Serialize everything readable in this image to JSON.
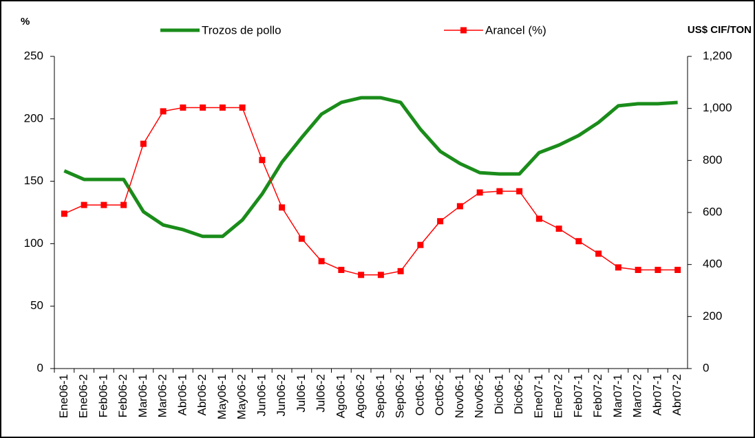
{
  "chart_data": {
    "type": "line",
    "y_label": "%",
    "y2_label": "US$ CIF/TON",
    "categories": [
      "Ene06-1",
      "Ene06-2",
      "Feb06-1",
      "Feb06-2",
      "Mar06-1",
      "Mar06-2",
      "Abr06-1",
      "Abr06-2",
      "May06-1",
      "May06-2",
      "Jun06-1",
      "Jun06-2",
      "Jul06-1",
      "Jul06-2",
      "Ago06-1",
      "Ago06-2",
      "Sep06-1",
      "Sep06-2",
      "Oct06-1",
      "Oct06-2",
      "Nov06-1",
      "Nov06-2",
      "Dic06-1",
      "Dic06-2",
      "Ene07-1",
      "Ene07-2",
      "Feb07-1",
      "Feb07-2",
      "Mar07-1",
      "Mar07-2",
      "Abr07-1",
      "Abr07-2"
    ],
    "series": [
      {
        "name": "Trozos de pollo",
        "color": "#1a8c1a",
        "axis": "y2",
        "marker": "none",
        "values": [
          760,
          727,
          727,
          727,
          603,
          552,
          534,
          508,
          508,
          571,
          671,
          793,
          888,
          978,
          1023,
          1041,
          1041,
          1023,
          920,
          835,
          788,
          753,
          748,
          748,
          830,
          859,
          896,
          946,
          1010,
          1018,
          1018,
          1023
        ]
      },
      {
        "name": "Arancel (%)",
        "color": "#ff0000",
        "axis": "y",
        "marker": "square",
        "values": [
          124,
          131,
          131,
          131,
          180,
          206,
          209,
          209,
          209,
          209,
          167,
          129,
          104,
          86,
          79,
          75,
          75,
          78,
          99,
          118,
          130,
          141,
          142,
          142,
          120,
          112,
          102,
          92,
          81,
          79,
          79,
          79
        ]
      }
    ],
    "ylim": [
      0,
      250
    ],
    "yticks": [
      0,
      50,
      100,
      150,
      200,
      250
    ],
    "y2lim": [
      0,
      1200
    ],
    "y2ticks": [
      0,
      200,
      400,
      600,
      800,
      {
        "value": 1000,
        "label": "1,000"
      },
      {
        "value": 1200,
        "label": "1,200"
      }
    ],
    "legend": "top"
  }
}
